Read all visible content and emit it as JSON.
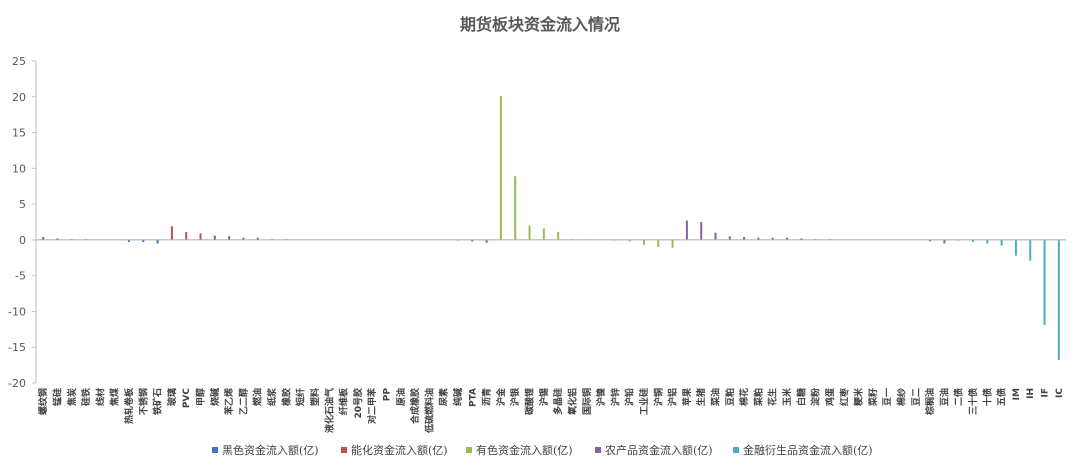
{
  "chart_data": {
    "type": "bar",
    "title": "期货板块资金流入情况",
    "ylim": [
      -20,
      25
    ],
    "yticks": [
      -20,
      -15,
      -10,
      -5,
      0,
      5,
      10,
      15,
      20,
      25
    ],
    "legend_position": "bottom",
    "grid": false,
    "series": [
      {
        "name": "黑色资金流入额(亿)",
        "color": "#4472C4",
        "points": [
          {
            "label": "螺纹钢",
            "value": 0.4
          },
          {
            "label": "锰硅",
            "value": 0.2
          },
          {
            "label": "焦炭",
            "value": 0.1
          },
          {
            "label": "硅铁",
            "value": 0.1
          },
          {
            "label": "线材",
            "value": 0.0
          },
          {
            "label": "焦煤",
            "value": 0.0
          },
          {
            "label": "热轧卷板",
            "value": -0.3
          },
          {
            "label": "不锈钢",
            "value": -0.3
          },
          {
            "label": "铁矿石",
            "value": -0.5
          }
        ]
      },
      {
        "name": "能化资金流入额(亿)",
        "color": "#C0504D",
        "points": [
          {
            "label": "玻璃",
            "value": 1.9
          },
          {
            "label": "PVC",
            "value": 1.1
          },
          {
            "label": "甲醇",
            "value": 0.9
          },
          {
            "label": "烧碱",
            "value": 0.6
          },
          {
            "label": "苯乙烯",
            "value": 0.5
          },
          {
            "label": "乙二醇",
            "value": 0.3
          },
          {
            "label": "燃油",
            "value": 0.3
          },
          {
            "label": "纸浆",
            "value": 0.1
          },
          {
            "label": "橡胶",
            "value": 0.1
          },
          {
            "label": "短纤",
            "value": 0.0
          },
          {
            "label": "塑料",
            "value": 0.0
          },
          {
            "label": "液化石油气",
            "value": 0.0
          },
          {
            "label": "纤维板",
            "value": 0.0
          },
          {
            "label": "20号胶",
            "value": 0.0
          },
          {
            "label": "对二甲苯",
            "value": 0.0
          },
          {
            "label": "PP",
            "value": 0.0
          },
          {
            "label": "原油",
            "value": 0.0
          },
          {
            "label": "合成橡胶",
            "value": 0.0
          },
          {
            "label": "低硫燃料油",
            "value": 0.0
          },
          {
            "label": "尿素",
            "value": 0.0
          },
          {
            "label": "纯碱",
            "value": -0.1
          },
          {
            "label": "PTA",
            "value": -0.2
          },
          {
            "label": "沥青",
            "value": -0.4
          }
        ]
      },
      {
        "name": "有色资金流入额(亿)",
        "color": "#9BBB59",
        "points": [
          {
            "label": "沪金",
            "value": 20.1
          },
          {
            "label": "沪银",
            "value": 8.9
          },
          {
            "label": "碳酸锂",
            "value": 2.0
          },
          {
            "label": "沪锡",
            "value": 1.6
          },
          {
            "label": "多晶硅",
            "value": 1.1
          },
          {
            "label": "氧化铝",
            "value": 0.1
          },
          {
            "label": "国际铜",
            "value": 0.1
          },
          {
            "label": "沪镍",
            "value": 0.0
          },
          {
            "label": "沪锌",
            "value": -0.1
          },
          {
            "label": "沪铅",
            "value": -0.2
          },
          {
            "label": "工业硅",
            "value": -0.7
          },
          {
            "label": "沪铜",
            "value": -1.0
          },
          {
            "label": "沪铝",
            "value": -1.1
          }
        ]
      },
      {
        "name": "农产品资金流入额(亿)",
        "color": "#8064A2",
        "points": [
          {
            "label": "苹果",
            "value": 2.7
          },
          {
            "label": "生猪",
            "value": 2.5
          },
          {
            "label": "菜油",
            "value": 1.0
          },
          {
            "label": "豆粕",
            "value": 0.5
          },
          {
            "label": "棉花",
            "value": 0.4
          },
          {
            "label": "菜粕",
            "value": 0.3
          },
          {
            "label": "花生",
            "value": 0.3
          },
          {
            "label": "玉米",
            "value": 0.3
          },
          {
            "label": "白糖",
            "value": 0.2
          },
          {
            "label": "淀粉",
            "value": 0.1
          },
          {
            "label": "鸡蛋",
            "value": 0.1
          },
          {
            "label": "红枣",
            "value": 0.0
          },
          {
            "label": "粳米",
            "value": 0.0
          },
          {
            "label": "菜籽",
            "value": 0.0
          },
          {
            "label": "豆一",
            "value": 0.0
          },
          {
            "label": "棉纱",
            "value": 0.0
          },
          {
            "label": "豆二",
            "value": 0.0
          },
          {
            "label": "棕榈油",
            "value": -0.2
          },
          {
            "label": "豆油",
            "value": -0.5
          }
        ]
      },
      {
        "name": "金融衍生品资金流入额(亿)",
        "color": "#4BACC6",
        "points": [
          {
            "label": "二债",
            "value": -0.1
          },
          {
            "label": "三十债",
            "value": -0.3
          },
          {
            "label": "十债",
            "value": -0.5
          },
          {
            "label": "五债",
            "value": -0.8
          },
          {
            "label": "IM",
            "value": -2.2
          },
          {
            "label": "IH",
            "value": -2.9
          },
          {
            "label": "IF",
            "value": -11.9
          },
          {
            "label": "IC",
            "value": -16.8
          }
        ]
      }
    ]
  }
}
